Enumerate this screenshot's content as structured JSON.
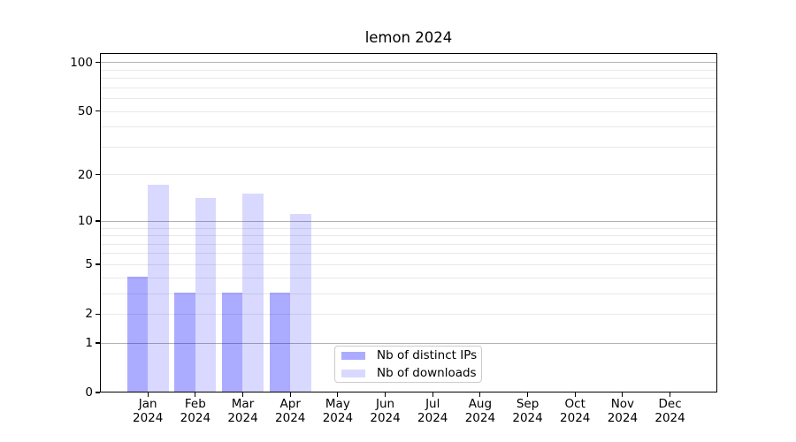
{
  "chart_data": {
    "type": "bar",
    "title": "lemon 2024",
    "x_axis": {
      "categories": [
        "Jan",
        "Feb",
        "Mar",
        "Apr",
        "May",
        "Jun",
        "Jul",
        "Aug",
        "Sep",
        "Oct",
        "Nov",
        "Dec"
      ],
      "year_suffix": "2024"
    },
    "y_axis": {
      "scale": "log1p",
      "ticks": [
        0,
        1,
        2,
        5,
        10,
        20,
        50,
        100
      ],
      "range": [
        0,
        114
      ],
      "major_gridlines": [
        1,
        10,
        100
      ],
      "minor_gridlines": [
        2,
        3,
        4,
        5,
        6,
        7,
        8,
        9,
        20,
        30,
        40,
        50,
        60,
        70,
        80,
        90
      ],
      "grid_on": true
    },
    "series": [
      {
        "key": "distinct-ips",
        "name": "Nb of distinct IPs",
        "base_color": "#0000ff",
        "alpha": 0.33,
        "appearance_hex": "#ababff",
        "values": [
          4,
          3,
          3,
          3,
          0,
          0,
          0,
          0,
          0,
          0,
          0,
          0
        ]
      },
      {
        "key": "downloads",
        "name": "Nb of downloads",
        "base_color": "#0000ff",
        "alpha": 0.15,
        "appearance_hex": "#d9d9ff",
        "values": [
          17,
          14,
          15,
          11,
          0,
          0,
          0,
          0,
          0,
          0,
          0,
          0
        ]
      }
    ],
    "legend": {
      "position": "lower center, inside plot"
    },
    "colors": {
      "background": "#ffffff",
      "spine": "#000000",
      "text": "#000000",
      "major_grid": "#b2b2b2",
      "minor_grid": "#e9e9e9",
      "legend_border": "#cccccc"
    }
  }
}
